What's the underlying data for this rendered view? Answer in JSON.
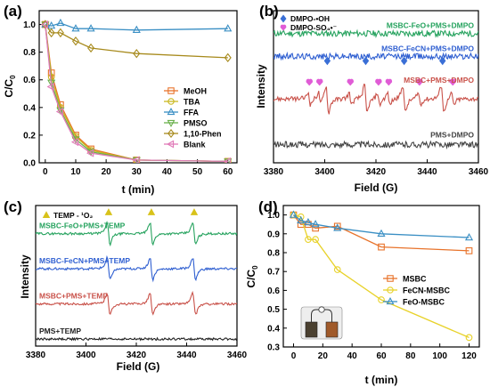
{
  "chart_data": [
    {
      "panel": "(a)",
      "type": "line",
      "xlabel": "t (min)",
      "ylabel_main": "C/C",
      "ylabel_sub": "0",
      "xlim": [
        -2,
        63
      ],
      "ylim": [
        0,
        1.1
      ],
      "xticks": [
        0,
        10,
        20,
        30,
        40,
        50,
        60
      ],
      "yticks": [
        0.0,
        0.2,
        0.4,
        0.6,
        0.8,
        1.0
      ],
      "xtick_labels": [
        "0",
        "10",
        "20",
        "30",
        "40",
        "50",
        "60"
      ],
      "ytick_labels": [
        "0.0",
        "0.2",
        "0.4",
        "0.6",
        "0.8",
        "1.0"
      ],
      "legend_position": "center-right",
      "series": [
        {
          "name": "MeOH",
          "marker": "square",
          "color": "#e8732b",
          "x": [
            0,
            2,
            5,
            10,
            15,
            30,
            60
          ],
          "y": [
            1.0,
            0.65,
            0.42,
            0.2,
            0.1,
            0.02,
            0.01
          ]
        },
        {
          "name": "TBA",
          "marker": "circle",
          "color": "#c9b820",
          "x": [
            0,
            2,
            5,
            10,
            15,
            30,
            60
          ],
          "y": [
            1.0,
            0.62,
            0.4,
            0.19,
            0.09,
            0.02,
            0.01
          ]
        },
        {
          "name": "FFA",
          "marker": "triangle-up",
          "color": "#3a8fc4",
          "x": [
            0,
            2,
            5,
            10,
            15,
            30,
            60
          ],
          "y": [
            1.0,
            0.99,
            1.01,
            0.97,
            0.97,
            0.96,
            0.97
          ]
        },
        {
          "name": "PMSO",
          "marker": "triangle-down",
          "color": "#6ab04c",
          "x": [
            0,
            2,
            5,
            10,
            15,
            30,
            60
          ],
          "y": [
            1.0,
            0.58,
            0.38,
            0.17,
            0.08,
            0.02,
            0.01
          ]
        },
        {
          "name": "1,10-Phen",
          "marker": "diamond",
          "color": "#a78a1c",
          "x": [
            0,
            2,
            5,
            10,
            15,
            30,
            60
          ],
          "y": [
            1.0,
            0.94,
            0.94,
            0.88,
            0.83,
            0.79,
            0.76
          ]
        },
        {
          "name": "Blank",
          "marker": "triangle-left",
          "color": "#e07ab8",
          "x": [
            0,
            2,
            5,
            10,
            15,
            30,
            60
          ],
          "y": [
            1.0,
            0.55,
            0.37,
            0.15,
            0.07,
            0.02,
            0.01
          ]
        }
      ]
    },
    {
      "panel": "(b)",
      "type": "line",
      "xlabel": "Field (G)",
      "ylabel": "Intensity",
      "xlim": [
        3380,
        3460
      ],
      "xticks": [
        3380,
        3400,
        3420,
        3440,
        3460
      ],
      "xtick_labels": [
        "3380",
        "3400",
        "3420",
        "3440",
        "3460"
      ],
      "legend": [
        {
          "name": "DMPO-•OH",
          "marker": "diamond",
          "color": "#3a6fd6"
        },
        {
          "name": "DMPO-SO₄•⁻",
          "marker": "heart",
          "color": "#e05cd6"
        }
      ],
      "series": [
        {
          "name": "MSBC-FeO+PMS+DMPO",
          "color": "#27a35f",
          "offset": 0.85,
          "noise": 0.02,
          "peak_amplitude": 0
        },
        {
          "name": "MSBC-FeCN+PMS+DMPO",
          "color": "#2f5fd1",
          "offset": 0.7,
          "noise": 0.02,
          "peak_amplitude": 0
        },
        {
          "name": "MSBC+PMS+DMPO",
          "color": "#c9524a",
          "offset": 0.42,
          "noise": 0.015,
          "peak_amplitude": 0.14
        },
        {
          "name": "PMS+DMPO",
          "color": "#444444",
          "offset": 0.12,
          "noise": 0.02,
          "peak_amplitude": 0
        }
      ],
      "oh_marker_fields": [
        3401,
        3416,
        3431,
        3446
      ],
      "so4_marker_fields": [
        3394,
        3398,
        3410,
        3421,
        3425,
        3437,
        3450
      ]
    },
    {
      "panel": "(c)",
      "type": "line",
      "xlabel": "Field (G)",
      "ylabel": "Intensity",
      "xlim": [
        3380,
        3460
      ],
      "xticks": [
        3380,
        3400,
        3420,
        3440,
        3460
      ],
      "xtick_labels": [
        "3380",
        "3400",
        "3420",
        "3440",
        "3460"
      ],
      "legend": [
        {
          "name": "TEMP - ¹O₂",
          "marker": "triangle-up",
          "color": "#d8c21a"
        }
      ],
      "series": [
        {
          "name": "MSBC-FeO+PMS+TEMP",
          "color": "#27a35f",
          "offset": 0.8,
          "peak_amplitude": 0.12
        },
        {
          "name": "MSBC-FeCN+PMS+TEMP",
          "color": "#2f5fd1",
          "offset": 0.55,
          "peak_amplitude": 0.12
        },
        {
          "name": "MSBC+PMS+TEMP",
          "color": "#c9524a",
          "offset": 0.3,
          "peak_amplitude": 0.12
        },
        {
          "name": "PMS+TEMP",
          "color": "#222222",
          "offset": 0.05,
          "peak_amplitude": 0
        }
      ],
      "peak_fields": [
        3409,
        3426,
        3443
      ]
    },
    {
      "panel": "(d)",
      "type": "line",
      "xlabel": "t (min)",
      "ylabel_main": "C/C",
      "ylabel_sub": "0",
      "xlim": [
        -7,
        127
      ],
      "ylim": [
        0.3,
        1.05
      ],
      "xticks": [
        0,
        20,
        40,
        60,
        80,
        100,
        120
      ],
      "yticks": [
        0.3,
        0.4,
        0.5,
        0.6,
        0.7,
        0.8,
        0.9,
        1.0
      ],
      "xtick_labels": [
        "0",
        "20",
        "40",
        "60",
        "80",
        "100",
        "120"
      ],
      "ytick_labels": [
        "0.3",
        "0.4",
        "0.5",
        "0.6",
        "0.7",
        "0.8",
        "0.9",
        "1.0"
      ],
      "legend_position": "center-right",
      "series": [
        {
          "name": "MSBC",
          "marker": "square",
          "color": "#e8732b",
          "x": [
            0,
            5,
            10,
            15,
            30,
            60,
            120
          ],
          "y": [
            1.0,
            0.95,
            0.95,
            0.93,
            0.94,
            0.83,
            0.81
          ]
        },
        {
          "name": "FeCN-MSBC",
          "marker": "circle",
          "color": "#e8d22a",
          "x": [
            0,
            5,
            10,
            15,
            30,
            60,
            120
          ],
          "y": [
            1.0,
            0.99,
            0.87,
            0.87,
            0.71,
            0.55,
            0.35
          ]
        },
        {
          "name": "FeO-MSBC",
          "marker": "triangle-up",
          "color": "#3a8fc4",
          "x": [
            0,
            5,
            10,
            15,
            30,
            60,
            120
          ],
          "y": [
            1.0,
            0.97,
            0.96,
            0.95,
            0.93,
            0.9,
            0.88
          ]
        }
      ]
    }
  ]
}
